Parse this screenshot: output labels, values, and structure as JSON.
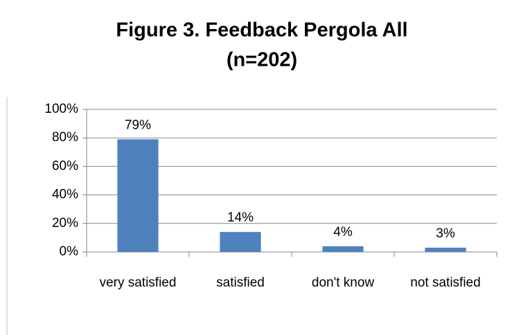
{
  "chart_data": {
    "type": "bar",
    "title": [
      "Figure 3. Feedback Pergola  All",
      "(n=202)"
    ],
    "categories": [
      "very satisfied",
      "satisfied",
      "don't know",
      "not satisfied"
    ],
    "values": [
      79,
      14,
      4,
      3
    ],
    "value_labels": [
      "79%",
      "14%",
      "4%",
      "3%"
    ],
    "color": "#4f81bd",
    "ylim": [
      0,
      100
    ],
    "yticks": [
      {
        "value": 0,
        "label": "0%"
      },
      {
        "value": 20,
        "label": "20%"
      },
      {
        "value": 40,
        "label": "40%"
      },
      {
        "value": 60,
        "label": "60%"
      },
      {
        "value": 80,
        "label": "80%"
      },
      {
        "value": 100,
        "label": "100%"
      }
    ],
    "grid": true
  }
}
